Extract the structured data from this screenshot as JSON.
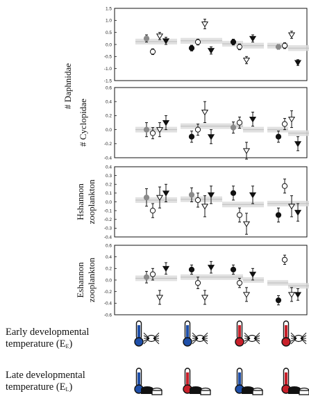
{
  "chart_data": [
    {
      "type": "scatter",
      "ylabel": "# Daphnidae",
      "ylim": [
        -1.5,
        1.5
      ],
      "yticks": [
        "1.5",
        "1.0",
        "0.5",
        "0.0",
        "-0.5",
        "-1.0",
        "-1.5"
      ],
      "yticks_num": [
        1.5,
        1.0,
        0.5,
        0.0,
        -0.5,
        -1.0,
        -1.5
      ],
      "groups": [
        {
          "bands": [
            0.12,
            0.12
          ],
          "points": [
            {
              "s": "gray",
              "v": 0.25,
              "e": 0.15
            },
            {
              "s": "circle",
              "v": -0.3,
              "e": 0.12
            },
            {
              "s": "tri_open",
              "v": 0.35,
              "e": 0.15
            },
            {
              "s": "tri_filled",
              "v": 0.15,
              "e": 0.15
            }
          ]
        },
        {
          "bands": [
            0.15,
            0.15
          ],
          "points": [
            {
              "s": "filled",
              "v": -0.15,
              "e": 0.12
            },
            {
              "s": "circle",
              "v": 0.1,
              "e": 0.12
            },
            {
              "s": "tri_open",
              "v": 0.85,
              "e": 0.2
            },
            {
              "s": "tri_filled",
              "v": -0.25,
              "e": 0.15
            }
          ]
        },
        {
          "bands": [
            0.03,
            -0.05
          ],
          "points": [
            {
              "s": "filled",
              "v": 0.1,
              "e": 0.12
            },
            {
              "s": "circle",
              "v": -0.1,
              "e": 0.12
            },
            {
              "s": "tri_open",
              "v": -0.65,
              "e": 0.15
            },
            {
              "s": "tri_filled",
              "v": 0.25,
              "e": 0.15
            }
          ]
        },
        {
          "bands": [
            -0.05,
            -0.15
          ],
          "points": [
            {
              "s": "gray",
              "v": -0.1,
              "e": 0.1
            },
            {
              "s": "circle",
              "v": -0.05,
              "e": 0.12
            },
            {
              "s": "tri_open",
              "v": 0.4,
              "e": 0.15
            },
            {
              "s": "tri_filled",
              "v": -0.75,
              "e": 0.12
            }
          ]
        }
      ]
    },
    {
      "type": "scatter",
      "ylabel": "# Cyclopidae",
      "ylim": [
        -0.4,
        0.6
      ],
      "yticks": [
        "0.6",
        "0.4",
        "0.2",
        "0.0",
        "-0.2",
        "-0.4"
      ],
      "yticks_num": [
        0.6,
        0.4,
        0.2,
        0.0,
        -0.2,
        -0.4
      ],
      "groups": [
        {
          "bands": [
            0.0,
            0.0
          ],
          "points": [
            {
              "s": "gray",
              "v": 0.0,
              "e": 0.1
            },
            {
              "s": "circle",
              "v": -0.05,
              "e": 0.08
            },
            {
              "s": "tri_open",
              "v": 0.0,
              "e": 0.1
            },
            {
              "s": "tri_filled",
              "v": 0.1,
              "e": 0.1
            }
          ]
        },
        {
          "bands": [
            0.05,
            0.05
          ],
          "points": [
            {
              "s": "filled",
              "v": -0.1,
              "e": 0.08
            },
            {
              "s": "circle",
              "v": 0.0,
              "e": 0.08
            },
            {
              "s": "tri_open",
              "v": 0.25,
              "e": 0.15
            },
            {
              "s": "tri_filled",
              "v": -0.1,
              "e": 0.1
            }
          ]
        },
        {
          "bands": [
            0.05,
            0.0
          ],
          "points": [
            {
              "s": "gray",
              "v": 0.03,
              "e": 0.08
            },
            {
              "s": "circle",
              "v": 0.1,
              "e": 0.08
            },
            {
              "s": "tri_open",
              "v": -0.3,
              "e": 0.12
            },
            {
              "s": "tri_filled",
              "v": 0.15,
              "e": 0.1
            }
          ]
        },
        {
          "bands": [
            0.0,
            -0.05
          ],
          "points": [
            {
              "s": "filled",
              "v": -0.1,
              "e": 0.08
            },
            {
              "s": "circle",
              "v": 0.08,
              "e": 0.08
            },
            {
              "s": "tri_open",
              "v": 0.15,
              "e": 0.12
            },
            {
              "s": "tri_filled",
              "v": -0.2,
              "e": 0.1
            }
          ]
        }
      ]
    },
    {
      "type": "scatter",
      "ylabel": "Hshannon zooplankton",
      "ylim": [
        -0.4,
        0.4
      ],
      "yticks": [
        "0.4",
        "0.3",
        "0.2",
        "0.1",
        "0.0",
        "-0.1",
        "-0.2",
        "-0.3",
        "-0.4"
      ],
      "yticks_num": [
        0.4,
        0.3,
        0.2,
        0.1,
        0.0,
        -0.1,
        -0.2,
        -0.3,
        -0.4
      ],
      "groups": [
        {
          "bands": [
            0.02,
            0.02
          ],
          "points": [
            {
              "s": "gray",
              "v": 0.05,
              "e": 0.1
            },
            {
              "s": "circle",
              "v": -0.1,
              "e": 0.08
            },
            {
              "s": "tri_open",
              "v": 0.05,
              "e": 0.12
            },
            {
              "s": "tri_filled",
              "v": 0.1,
              "e": 0.1
            }
          ]
        },
        {
          "bands": [
            0.03,
            0.03
          ],
          "points": [
            {
              "s": "gray",
              "v": 0.08,
              "e": 0.08
            },
            {
              "s": "circle",
              "v": 0.02,
              "e": 0.08
            },
            {
              "s": "tri_open",
              "v": -0.05,
              "e": 0.12
            },
            {
              "s": "tri_filled",
              "v": 0.08,
              "e": 0.1
            }
          ]
        },
        {
          "bands": [
            -0.03,
            -0.03
          ],
          "points": [
            {
              "s": "filled",
              "v": 0.1,
              "e": 0.08
            },
            {
              "s": "circle",
              "v": -0.15,
              "e": 0.08
            },
            {
              "s": "tri_open",
              "v": -0.25,
              "e": 0.12
            },
            {
              "s": "tri_filled",
              "v": 0.08,
              "e": 0.1
            }
          ]
        },
        {
          "bands": [
            -0.02,
            -0.02
          ],
          "points": [
            {
              "s": "filled",
              "v": -0.15,
              "e": 0.08
            },
            {
              "s": "circle",
              "v": 0.18,
              "e": 0.08
            },
            {
              "s": "tri_open",
              "v": -0.05,
              "e": 0.12
            },
            {
              "s": "tri_filled",
              "v": -0.12,
              "e": 0.1
            }
          ]
        }
      ]
    },
    {
      "type": "scatter",
      "ylabel": "Eshannon zooplankton",
      "ylim": [
        -0.6,
        0.6
      ],
      "yticks": [
        "0.6",
        "0.4",
        "0.2",
        "0.0",
        "-0.2",
        "-0.4",
        "-0.6"
      ],
      "yticks_num": [
        0.6,
        0.4,
        0.2,
        0.0,
        -0.2,
        -0.4,
        -0.6
      ],
      "groups": [
        {
          "bands": [
            0.03,
            0.03
          ],
          "points": [
            {
              "s": "gray",
              "v": 0.05,
              "e": 0.1
            },
            {
              "s": "circle",
              "v": 0.1,
              "e": 0.1
            },
            {
              "s": "tri_open",
              "v": -0.3,
              "e": 0.12
            },
            {
              "s": "tri_filled",
              "v": 0.2,
              "e": 0.1
            }
          ]
        },
        {
          "bands": [
            0.05,
            0.05
          ],
          "points": [
            {
              "s": "filled",
              "v": 0.18,
              "e": 0.08
            },
            {
              "s": "circle",
              "v": -0.05,
              "e": 0.1
            },
            {
              "s": "tri_open",
              "v": -0.3,
              "e": 0.12
            },
            {
              "s": "tri_filled",
              "v": 0.22,
              "e": 0.1
            }
          ]
        },
        {
          "bands": [
            0.05,
            0.0
          ],
          "points": [
            {
              "s": "filled",
              "v": 0.18,
              "e": 0.08
            },
            {
              "s": "circle",
              "v": -0.05,
              "e": 0.08
            },
            {
              "s": "tri_open",
              "v": -0.25,
              "e": 0.12
            },
            {
              "s": "tri_filled",
              "v": 0.1,
              "e": 0.1
            }
          ]
        },
        {
          "bands": [
            -0.05,
            -0.1
          ],
          "points": [
            {
              "s": "filled",
              "v": -0.35,
              "e": 0.08
            },
            {
              "s": "circle",
              "v": 0.35,
              "e": 0.08
            },
            {
              "s": "tri_open",
              "v": -0.25,
              "e": 0.12
            },
            {
              "s": "tri_filled",
              "v": -0.25,
              "e": 0.1
            }
          ]
        }
      ]
    }
  ],
  "labels": {
    "early": {
      "line1": "Early developmental",
      "line2": "temperature (E",
      "sub": "E",
      "close": ")"
    },
    "late": {
      "line1": "Late developmental",
      "line2": "temperature (E",
      "sub": "L",
      "close": ")"
    }
  },
  "treatments": {
    "early": [
      "cold",
      "cold",
      "warm",
      "warm"
    ],
    "late": [
      "cold",
      "warm",
      "cold",
      "warm"
    ]
  },
  "colors": {
    "cold": "#1f4fa8",
    "warm": "#c8202a",
    "gray_marker": "#8a8a8a",
    "band": "#dcdcdc"
  }
}
